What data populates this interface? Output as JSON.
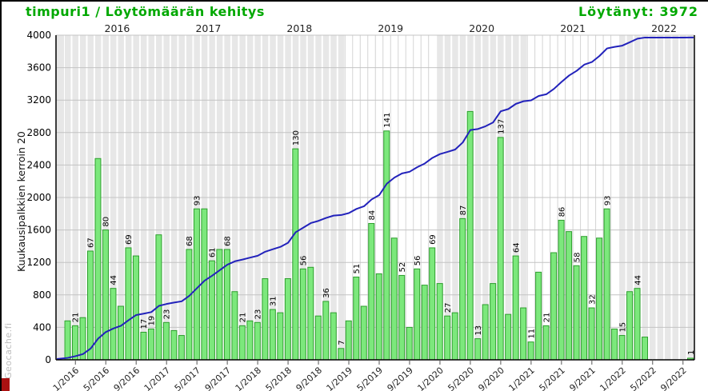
{
  "header": {
    "title": "timpuri1 / Löytömäärän kehitys",
    "found_label": "Löytänyt: 3972"
  },
  "watermark": {
    "text": "Geocache.fi"
  },
  "colors": {
    "title_green": "#00A800",
    "bar_fill": "#7CE87C",
    "bar_stroke": "#2D9E2D",
    "line_blue": "#2222BB",
    "band_gray": "#E7E7E7",
    "grid_gray": "#C4C4C4",
    "month_line": "#D4D4D4",
    "axis_black": "#000000",
    "watermark_gray": "#BDBDBD",
    "corner_red": "#AA1111"
  },
  "chart_data": {
    "type": "bar+line",
    "title": "timpuri1 / Löytömäärän kehitys",
    "subtitle_total": "Löytänyt: 3972",
    "total": 3972,
    "bar_multiplier_note": "monthly bars scaled x20 on left axis",
    "bar_multiplier": 20,
    "ylabel": "Kuukausipalkkien kerroin 20",
    "ylim": [
      0,
      4000
    ],
    "y_ticks": [
      0,
      400,
      800,
      1200,
      1600,
      2000,
      2400,
      2800,
      3200,
      3600,
      4000
    ],
    "top_year_labels": [
      "2016",
      "2017",
      "2018",
      "2019",
      "2020",
      "2021",
      "2022"
    ],
    "x_tick_labels": [
      "1/2016",
      "5/2016",
      "9/2016",
      "1/2017",
      "5/2017",
      "9/2017",
      "1/2018",
      "5/2018",
      "9/2018",
      "1/2019",
      "5/2019",
      "9/2019",
      "1/2020",
      "5/2020",
      "9/2020",
      "1/2021",
      "5/2021",
      "9/2021",
      "1/2022",
      "5/2022",
      "9/2022"
    ],
    "start_month": "12/2015",
    "gray_band_years": [
      2015,
      2016,
      2017,
      2018,
      2020,
      2022
    ],
    "months": [
      {
        "v": 24
      },
      {
        "v": 21,
        "label": "21"
      },
      {
        "v": 26
      },
      {
        "v": 67,
        "label": "67"
      },
      {
        "v": 124
      },
      {
        "v": 80,
        "label": "80"
      },
      {
        "v": 44,
        "label": "44"
      },
      {
        "v": 33
      },
      {
        "v": 69,
        "label": "69"
      },
      {
        "v": 64
      },
      {
        "v": 17,
        "label": "17"
      },
      {
        "v": 19,
        "label": "19"
      },
      {
        "v": 77
      },
      {
        "v": 23,
        "label": "23"
      },
      {
        "v": 18
      },
      {
        "v": 15
      },
      {
        "v": 68,
        "label": "68"
      },
      {
        "v": 93,
        "label": "93"
      },
      {
        "v": 93
      },
      {
        "v": 61,
        "label": "61"
      },
      {
        "v": 68
      },
      {
        "v": 68,
        "label": "68"
      },
      {
        "v": 42
      },
      {
        "v": 21,
        "label": "21"
      },
      {
        "v": 24
      },
      {
        "v": 23,
        "label": "23"
      },
      {
        "v": 50
      },
      {
        "v": 31,
        "label": "31"
      },
      {
        "v": 29
      },
      {
        "v": 50
      },
      {
        "v": 130,
        "label": "130"
      },
      {
        "v": 56,
        "label": "56"
      },
      {
        "v": 57
      },
      {
        "v": 27
      },
      {
        "v": 36,
        "label": "36"
      },
      {
        "v": 29
      },
      {
        "v": 7,
        "label": "7"
      },
      {
        "v": 24
      },
      {
        "v": 51,
        "label": "51"
      },
      {
        "v": 33
      },
      {
        "v": 84,
        "label": "84"
      },
      {
        "v": 53
      },
      {
        "v": 141,
        "label": "141"
      },
      {
        "v": 75
      },
      {
        "v": 52,
        "label": "52"
      },
      {
        "v": 20
      },
      {
        "v": 56,
        "label": "56"
      },
      {
        "v": 46
      },
      {
        "v": 69,
        "label": "69"
      },
      {
        "v": 47
      },
      {
        "v": 27,
        "label": "27"
      },
      {
        "v": 29
      },
      {
        "v": 87,
        "label": "87"
      },
      {
        "v": 153
      },
      {
        "v": 13,
        "label": "13"
      },
      {
        "v": 34
      },
      {
        "v": 47
      },
      {
        "v": 137,
        "label": "137"
      },
      {
        "v": 28
      },
      {
        "v": 64,
        "label": "64"
      },
      {
        "v": 32
      },
      {
        "v": 11,
        "label": "11"
      },
      {
        "v": 54
      },
      {
        "v": 21,
        "label": "21"
      },
      {
        "v": 66
      },
      {
        "v": 86,
        "label": "86"
      },
      {
        "v": 79
      },
      {
        "v": 58,
        "label": "58"
      },
      {
        "v": 76
      },
      {
        "v": 32,
        "label": "32"
      },
      {
        "v": 75
      },
      {
        "v": 93,
        "label": "93"
      },
      {
        "v": 19
      },
      {
        "v": 15,
        "label": "15"
      },
      {
        "v": 42
      },
      {
        "v": 44,
        "label": "44"
      },
      {
        "v": 14
      },
      {
        "v": 0
      },
      {
        "v": 0
      },
      {
        "v": 0
      },
      {
        "v": 0
      },
      {
        "v": 0
      },
      {
        "v": 1,
        "label": "1"
      }
    ]
  }
}
